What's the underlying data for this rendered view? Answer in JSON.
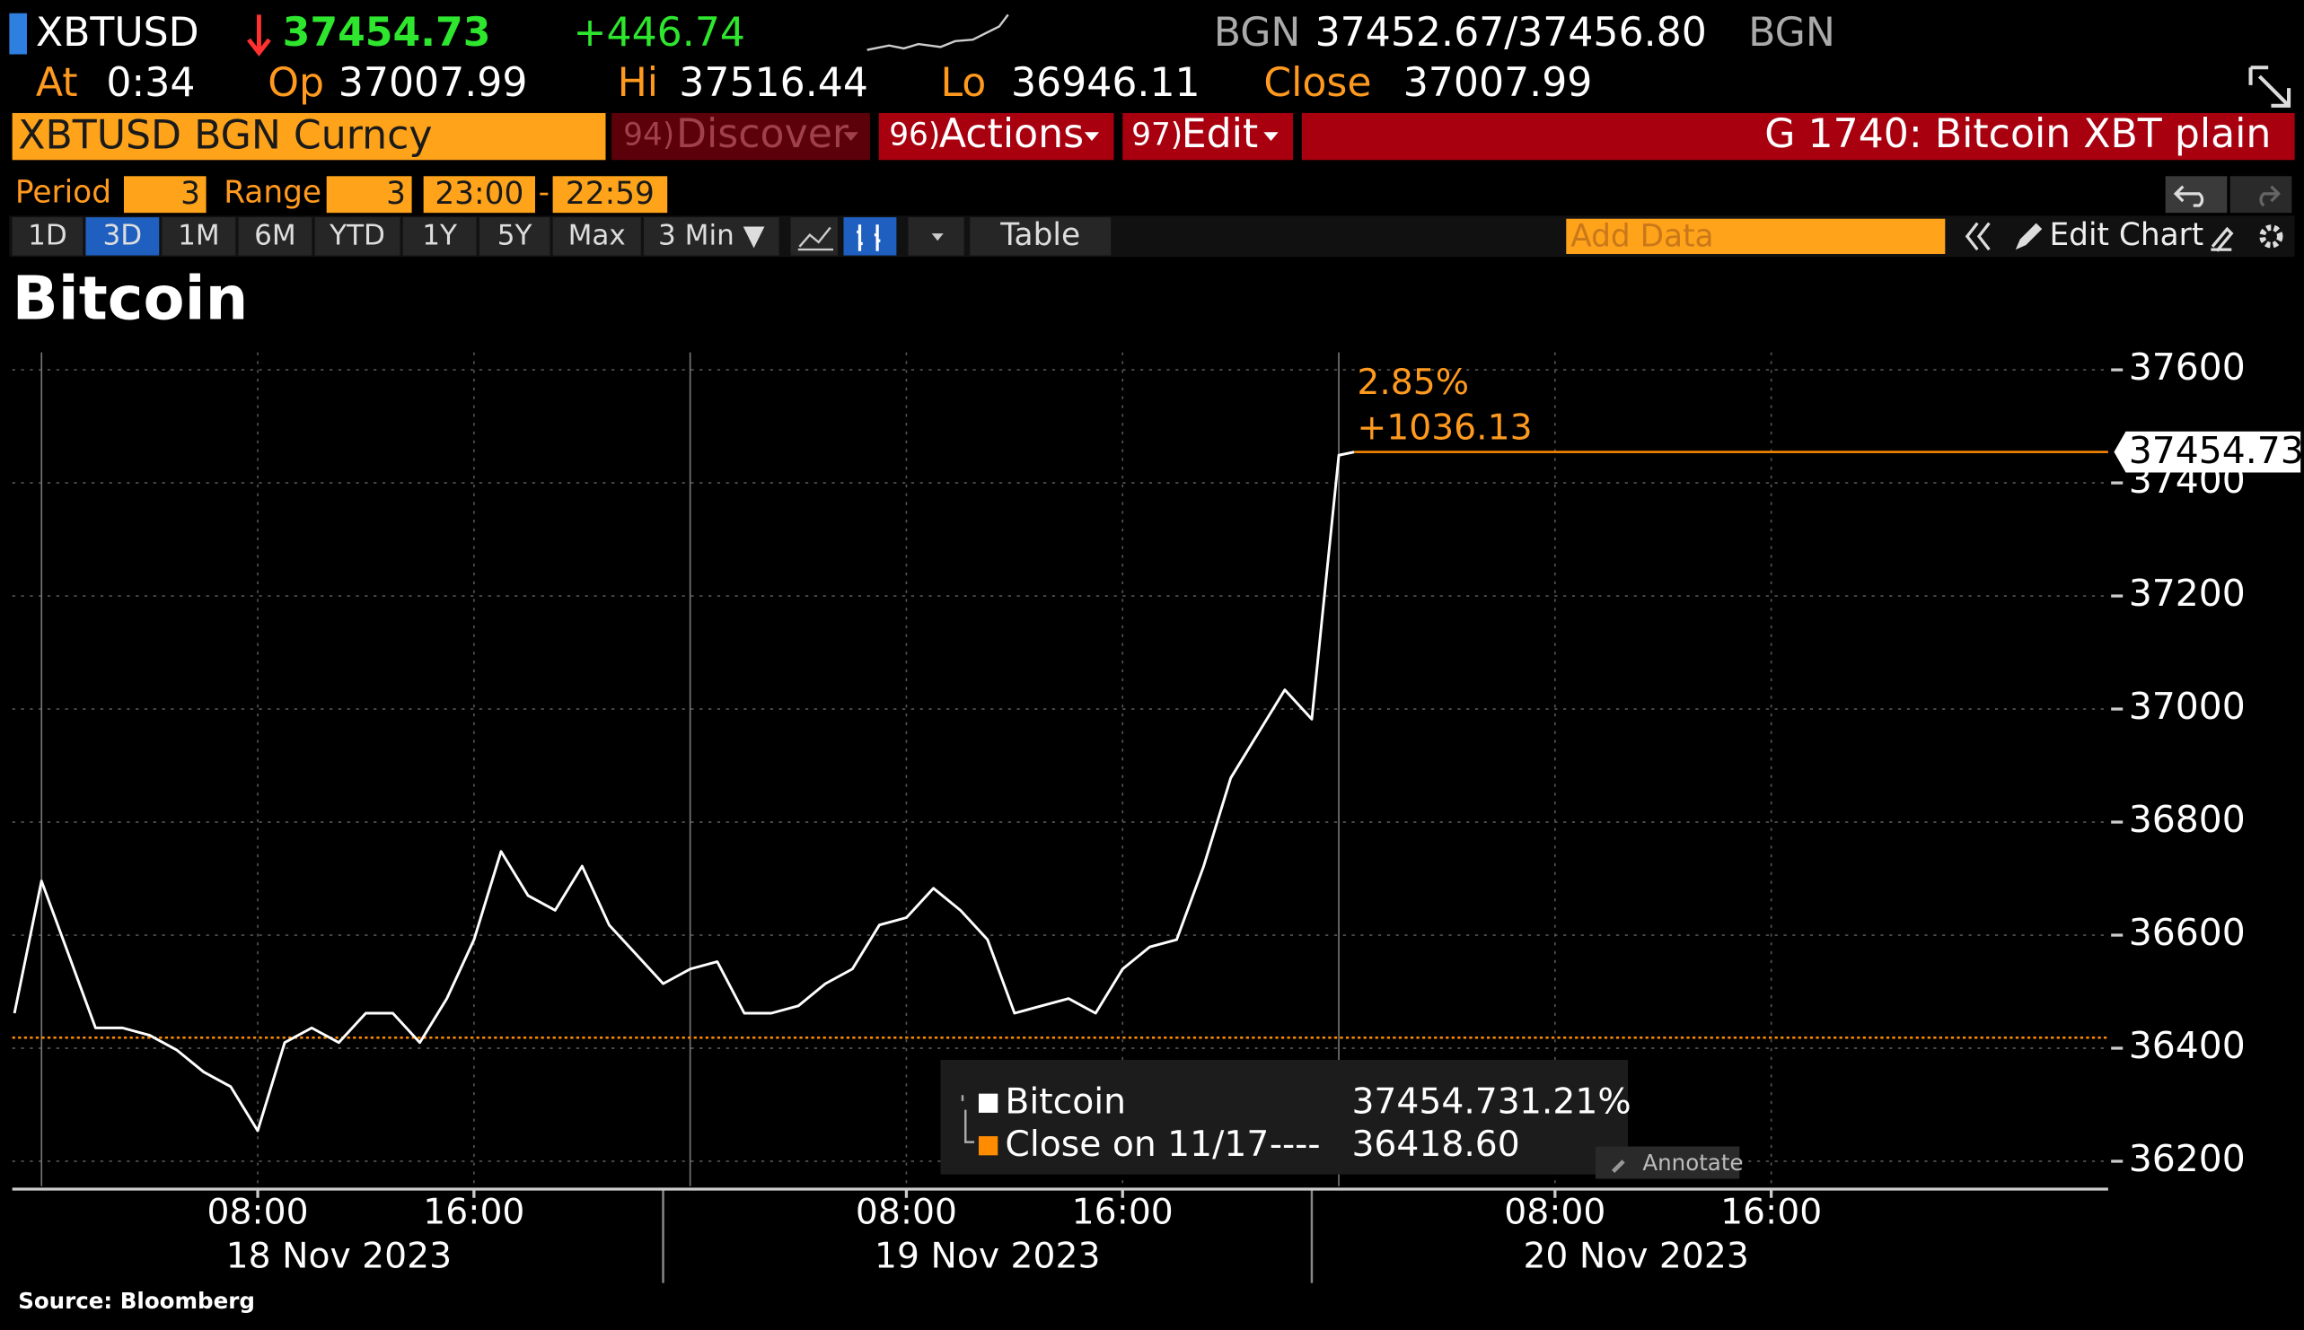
{
  "header": {
    "ticker": "XBTUSD",
    "price": "37454.73",
    "change": "+446.74",
    "source1": "BGN",
    "bidask": "37452.67/37456.80",
    "source2": "BGN",
    "at_label": "At",
    "at": "0:34",
    "op_label": "Op",
    "op": "37007.99",
    "hi_label": "Hi",
    "hi": "37516.44",
    "lo_label": "Lo",
    "lo": "36946.11",
    "close_label": "Close",
    "close": "37007.99"
  },
  "menu": {
    "security": "XBTUSD BGN Curncy",
    "items": [
      {
        "num": "94)",
        "label": "Discover"
      },
      {
        "num": "96)",
        "label": "Actions"
      },
      {
        "num": "97)",
        "label": "Edit"
      }
    ],
    "page": "G 1740: Bitcoin XBT plain"
  },
  "controls": {
    "period_label": "Period",
    "period": "3",
    "range_label": "Range",
    "range": "3",
    "start": "23:00",
    "sep": "-",
    "end": "22:59",
    "tabs": [
      "1D",
      "3D",
      "1M",
      "6M",
      "YTD",
      "1Y",
      "5Y",
      "Max",
      "3 Min ▼"
    ],
    "active_tab": 1,
    "table": "Table",
    "add_data": "Add Data",
    "edit_chart": "Edit Chart"
  },
  "chart_data": {
    "type": "line",
    "title": "Bitcoin",
    "x": [
      "2023-11-17 23:00",
      "2023-11-18 00:00",
      "2023-11-18 01:00",
      "2023-11-18 02:00",
      "2023-11-18 03:00",
      "2023-11-18 04:00",
      "2023-11-18 05:00",
      "2023-11-18 06:00",
      "2023-11-18 07:00",
      "2023-11-18 08:00",
      "2023-11-18 09:00",
      "2023-11-18 10:00",
      "2023-11-18 11:00",
      "2023-11-18 12:00",
      "2023-11-18 13:00",
      "2023-11-18 14:00",
      "2023-11-18 15:00",
      "2023-11-18 16:00",
      "2023-11-18 17:00",
      "2023-11-18 18:00",
      "2023-11-18 19:00",
      "2023-11-18 20:00",
      "2023-11-18 21:00",
      "2023-11-18 22:00",
      "2023-11-18 23:00",
      "2023-11-19 00:00",
      "2023-11-19 01:00",
      "2023-11-19 02:00",
      "2023-11-19 03:00",
      "2023-11-19 04:00",
      "2023-11-19 05:00",
      "2023-11-19 06:00",
      "2023-11-19 07:00",
      "2023-11-19 08:00",
      "2023-11-19 09:00",
      "2023-11-19 10:00",
      "2023-11-19 11:00",
      "2023-11-19 12:00",
      "2023-11-19 13:00",
      "2023-11-19 14:00",
      "2023-11-19 15:00",
      "2023-11-19 16:00",
      "2023-11-19 17:00",
      "2023-11-19 18:00",
      "2023-11-19 19:00",
      "2023-11-19 20:00",
      "2023-11-19 21:00",
      "2023-11-19 22:00",
      "2023-11-19 23:00",
      "2023-11-19 23:30",
      "2023-11-20 00:00",
      "2023-11-20 00:34"
    ],
    "series": [
      {
        "name": "Bitcoin",
        "color": "#ffffff",
        "last": 37454.73,
        "last_pct": "1.21%",
        "values": [
          36462,
          36696,
          36566,
          36436,
          36436,
          36423,
          36397,
          36358,
          36332,
          36254,
          36410,
          36436,
          36410,
          36462,
          36462,
          36410,
          36488,
          36592,
          36748,
          36670,
          36644,
          36722,
          36618,
          36566,
          36514,
          36540,
          36553,
          36462,
          36462,
          36475,
          36514,
          36540,
          36618,
          36631,
          36683,
          36644,
          36592,
          36462,
          36475,
          36488,
          36462,
          36540,
          36579,
          36592,
          36722,
          36878,
          36956,
          37034,
          36982,
          37216,
          37449,
          37454.73
        ]
      }
    ],
    "reference": {
      "name": "Close on 11/17",
      "dash": "----",
      "value": 36418.6,
      "label": "36418.60",
      "color": "#ff8c00"
    },
    "change_pct": "2.85%",
    "change_abs": "+1036.13",
    "xlim": [
      "2023-11-17 22:55",
      "2023-11-21 04:28"
    ],
    "xticks": [
      {
        "value": "2023-11-18 08:00",
        "label": "08:00"
      },
      {
        "value": "2023-11-18 16:00",
        "label": "16:00"
      },
      {
        "value": "2023-11-19 08:00",
        "label": "08:00"
      },
      {
        "value": "2023-11-19 16:00",
        "label": "16:00"
      },
      {
        "value": "2023-11-20 08:00",
        "label": "08:00"
      },
      {
        "value": "2023-11-20 16:00",
        "label": "16:00"
      }
    ],
    "xdates": [
      {
        "value": "2023-11-18",
        "label": "18 Nov 2023"
      },
      {
        "value": "2023-11-19",
        "label": "19 Nov 2023"
      },
      {
        "value": "2023-11-20",
        "label": "20 Nov 2023"
      }
    ],
    "ylim": [
      36156,
      37631
    ],
    "yticks": [
      36200,
      36400,
      36600,
      36800,
      37000,
      37200,
      37400,
      37600
    ],
    "grid": true,
    "annotate": "Annotate",
    "source": "Source:  Bloomberg"
  }
}
